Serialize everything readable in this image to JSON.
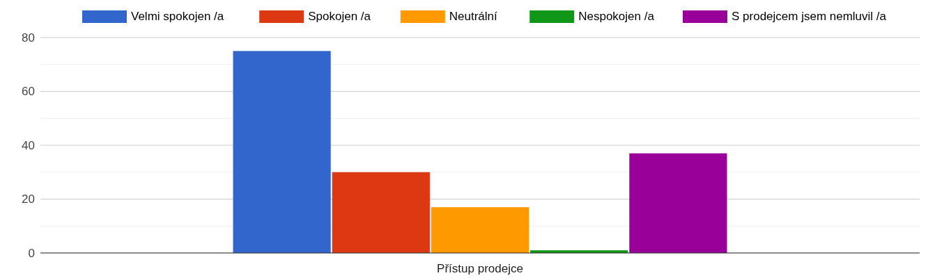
{
  "chart_data": {
    "type": "bar",
    "categories": [
      "Přístup prodejce"
    ],
    "series": [
      {
        "name": "Velmi spokojen /a",
        "color": "#3366cc",
        "values": [
          75
        ]
      },
      {
        "name": "Spokojen /a",
        "color": "#dc3912",
        "values": [
          30
        ]
      },
      {
        "name": "Neutrální",
        "color": "#ff9900",
        "values": [
          17
        ]
      },
      {
        "name": "Nespokojen /a",
        "color": "#109618",
        "values": [
          1
        ]
      },
      {
        "name": "S prodejcem jsem nemluvil /a",
        "color": "#990099",
        "values": [
          37
        ]
      }
    ],
    "ylim": [
      0,
      80
    ],
    "yticks": [
      0,
      {
        "value": 10,
        "label": null
      },
      20,
      {
        "value": 30,
        "label": null
      },
      40,
      {
        "value": 50,
        "label": null
      },
      60,
      {
        "value": 70,
        "label": null
      },
      80
    ],
    "grid": "y",
    "legend": "top"
  }
}
